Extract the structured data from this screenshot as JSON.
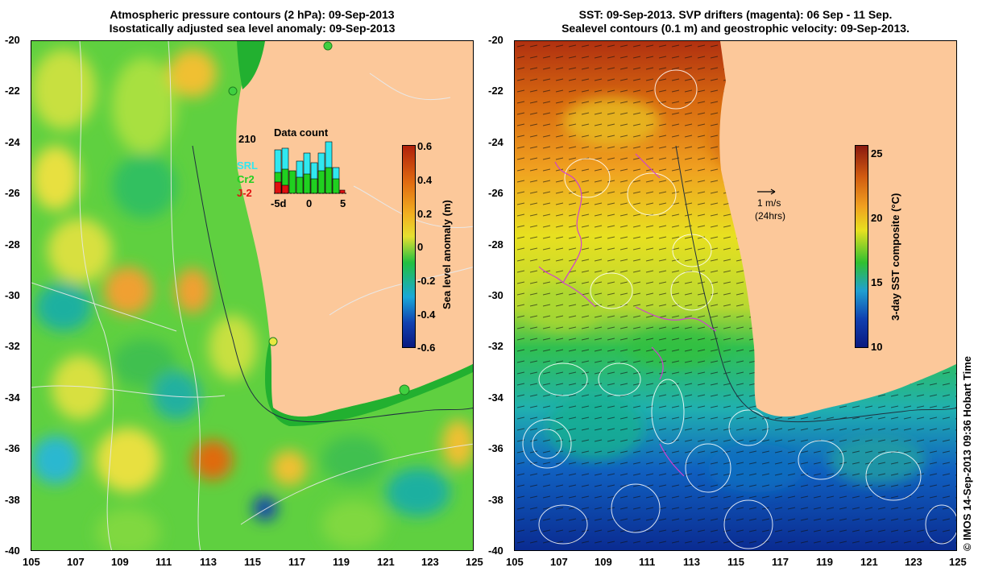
{
  "left_panel": {
    "title_line1": "Atmospheric pressure contours (2 hPa): 09-Sep-2013",
    "title_line2": "Isostatically adjusted sea level anomaly: 09-Sep-2013",
    "colorbar": {
      "label": "Sea level anomaly (m)",
      "ticks": [
        "0.6",
        "0.4",
        "0.2",
        "0",
        "-0.2",
        "-0.4",
        "-0.6"
      ],
      "colors": [
        "#b0200a",
        "#e06a10",
        "#f2b020",
        "#e6e030",
        "#22c040",
        "#1aa8d8",
        "#1040b0",
        "#0a1a80"
      ]
    },
    "inset": {
      "title": "Data count",
      "max_label": "210",
      "x_ticks": [
        "-5d",
        "0",
        "5"
      ],
      "legend": [
        {
          "name": "SRL",
          "color": "#30e8f0"
        },
        {
          "name": "Cr2",
          "color": "#20d020"
        },
        {
          "name": "J-2",
          "color": "#e01010"
        }
      ]
    }
  },
  "right_panel": {
    "title_line1": "SST: 09-Sep-2013. SVP drifters (magenta): 06 Sep - 11 Sep.",
    "title_line2": "Sealevel contours (0.1 m) and geostrophic velocity: 09-Sep-2013.",
    "colorbar": {
      "label": "3-day SST composite (°C)",
      "ticks": [
        "25",
        "20",
        "15",
        "10"
      ],
      "colors": [
        "#8a1a10",
        "#d05a10",
        "#f0a020",
        "#e8e020",
        "#30c030",
        "#20a0d0",
        "#1040b0",
        "#0a1a80"
      ]
    },
    "vector_label_line1": "1 m/s",
    "vector_label_line2": "(24hrs)"
  },
  "axes": {
    "x_ticks": [
      "105",
      "107",
      "109",
      "111",
      "113",
      "115",
      "117",
      "119",
      "121",
      "123",
      "125"
    ],
    "y_ticks": [
      "-20",
      "-22",
      "-24",
      "-26",
      "-28",
      "-30",
      "-32",
      "-34",
      "-36",
      "-38",
      "-40"
    ]
  },
  "credit": "© IMOS 14-Sep-2013 09:36 Hobart Time",
  "colors": {
    "land": "#fcc89a",
    "drifter": "#d040d0"
  }
}
